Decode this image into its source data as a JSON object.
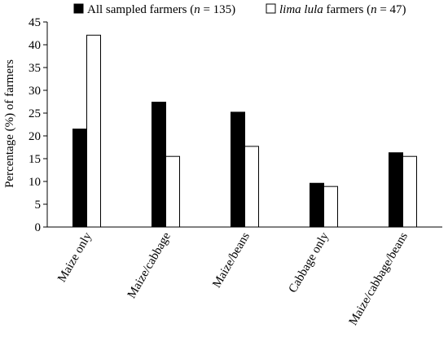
{
  "chart_data": {
    "type": "bar",
    "categories": [
      "Maize only",
      "Maize/cabbage",
      "Maize/beans",
      "Cabbage only",
      "Maize/cabbage/beans"
    ],
    "series": [
      {
        "name": "All sampled farmers (n = 135)",
        "name_parts": {
          "pre": "All sampled farmers (",
          "italic": "n",
          "post": " = 135)"
        },
        "color": "#000000",
        "values": [
          21.5,
          27.4,
          25.2,
          9.6,
          16.3
        ]
      },
      {
        "name": "lima lula farmers (n = 47)",
        "name_parts": {
          "italic1": "lima lula",
          "mid": " farmers (",
          "italic2": "n",
          "post": " = 47)"
        },
        "color": "#ffffff",
        "values": [
          42.1,
          15.5,
          17.7,
          8.9,
          15.5
        ]
      }
    ],
    "ylabel": "Percentage (%) of farmers",
    "xlabel": "",
    "ylim": [
      0,
      45
    ],
    "yticks": [
      "0",
      "5",
      "10",
      "15",
      "20",
      "25",
      "30",
      "35",
      "40",
      "45"
    ],
    "grid": false,
    "legend": "top"
  }
}
